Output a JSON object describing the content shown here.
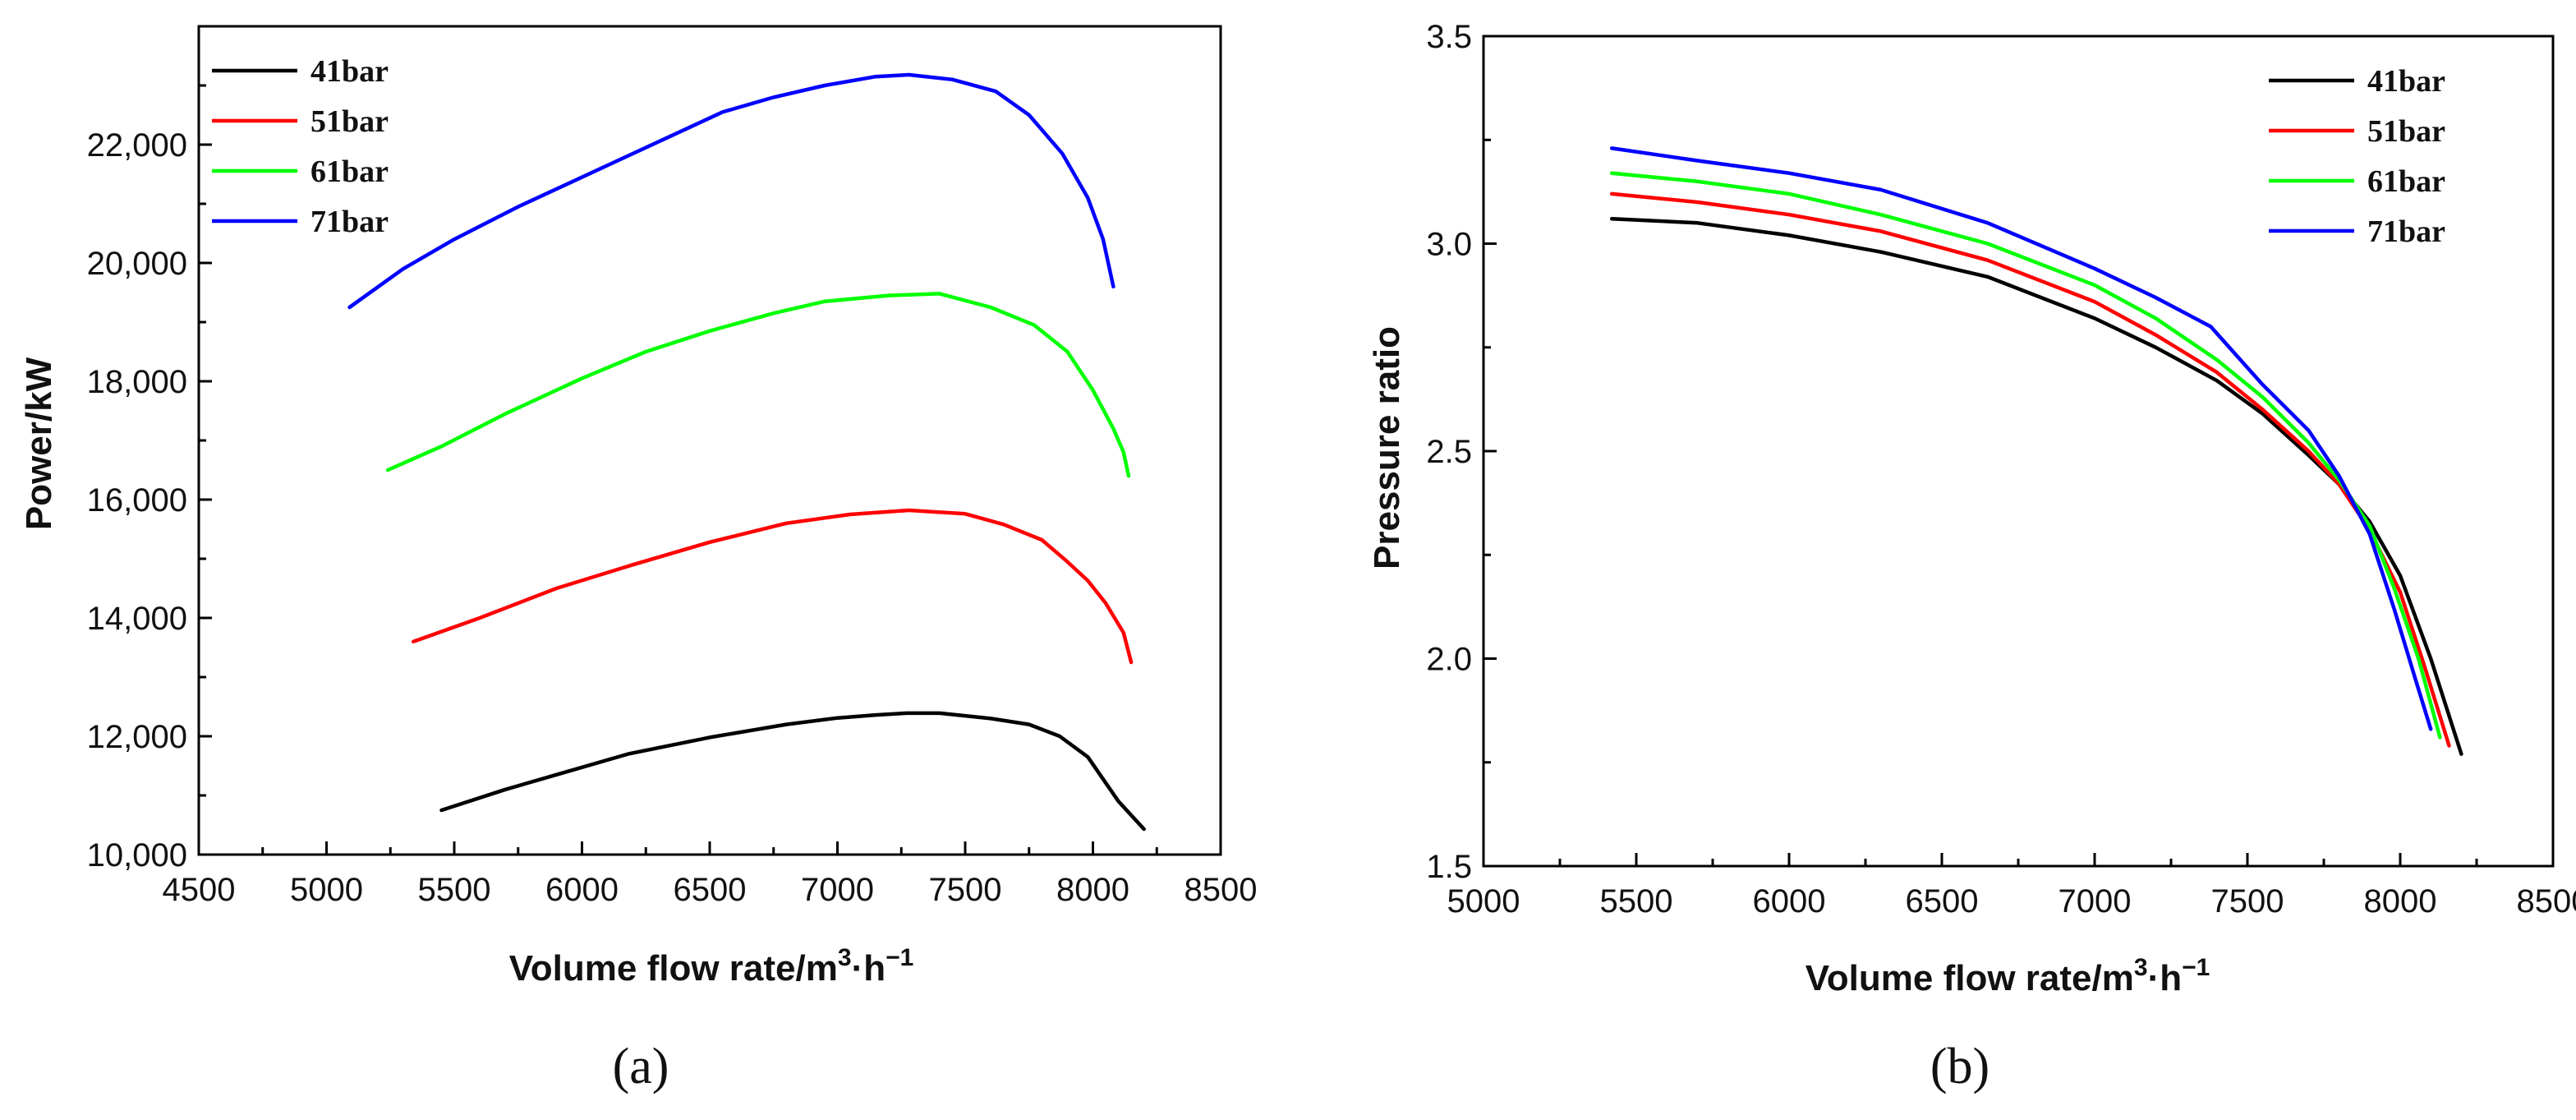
{
  "chart_data": [
    {
      "type": "line",
      "panel_label": "(a)",
      "xlabel_main": "Volume flow rate/m",
      "xlabel_sup": "3",
      "xlabel_tail": "·h",
      "xlabel_sup2": "−1",
      "ylabel": "Power/kW",
      "xlim": [
        4500,
        8500
      ],
      "ylim": [
        10000,
        24000
      ],
      "xticks": [
        4500,
        5000,
        5500,
        6000,
        6500,
        7000,
        7500,
        8000,
        8500
      ],
      "xtick_labels": [
        "4500",
        "5000",
        "5500",
        "6000",
        "6500",
        "7000",
        "7500",
        "8000",
        "8500"
      ],
      "yticks": [
        10000,
        12000,
        14000,
        16000,
        18000,
        20000,
        22000
      ],
      "ytick_labels": [
        "10,000",
        "12,000",
        "14,000",
        "16,000",
        "18,000",
        "20,000",
        "22,000"
      ],
      "legend_position": "top-left",
      "series": [
        {
          "name": "41bar",
          "color": "#000000",
          "x": [
            5450,
            5700,
            5900,
            6180,
            6500,
            6800,
            7000,
            7150,
            7270,
            7400,
            7600,
            7750,
            7870,
            7980,
            8100,
            8200
          ],
          "y": [
            10750,
            11100,
            11350,
            11700,
            11980,
            12200,
            12310,
            12360,
            12390,
            12390,
            12300,
            12200,
            12000,
            11650,
            10900,
            10430
          ]
        },
        {
          "name": "51bar",
          "color": "#ff0000",
          "x": [
            5340,
            5600,
            5900,
            6200,
            6500,
            6800,
            7050,
            7280,
            7500,
            7650,
            7800,
            7900,
            7980,
            8050,
            8120,
            8150
          ],
          "y": [
            13600,
            14000,
            14500,
            14900,
            15280,
            15600,
            15750,
            15820,
            15760,
            15580,
            15320,
            14950,
            14630,
            14250,
            13750,
            13250
          ]
        },
        {
          "name": "61bar",
          "color": "#00ff00",
          "x": [
            5240,
            5450,
            5700,
            6000,
            6250,
            6500,
            6750,
            6950,
            7200,
            7400,
            7600,
            7770,
            7900,
            8000,
            8080,
            8120,
            8140
          ],
          "y": [
            16500,
            16900,
            17450,
            18050,
            18500,
            18850,
            19150,
            19350,
            19450,
            19480,
            19250,
            18950,
            18500,
            17850,
            17200,
            16800,
            16400
          ]
        },
        {
          "name": "71bar",
          "color": "#0000ff",
          "x": [
            5090,
            5300,
            5500,
            5750,
            5950,
            6150,
            6350,
            6550,
            6750,
            6950,
            7150,
            7280,
            7450,
            7620,
            7750,
            7880,
            7980,
            8040,
            8080
          ],
          "y": [
            19250,
            19900,
            20400,
            20950,
            21350,
            21750,
            22150,
            22550,
            22800,
            23000,
            23150,
            23180,
            23100,
            22900,
            22500,
            21850,
            21100,
            20400,
            19600
          ]
        }
      ]
    },
    {
      "type": "line",
      "panel_label": "(b)",
      "xlabel_main": "Volume flow rate/m",
      "xlabel_sup": "3",
      "xlabel_tail": "·h",
      "xlabel_sup2": "−1",
      "ylabel": "Pressure ratio",
      "xlim": [
        5000,
        8500
      ],
      "ylim": [
        1.5,
        3.5
      ],
      "xticks": [
        5000,
        5500,
        6000,
        6500,
        7000,
        7500,
        8000,
        8500
      ],
      "xtick_labels": [
        "5000",
        "5500",
        "6000",
        "6500",
        "7000",
        "7500",
        "8000",
        "8500"
      ],
      "yticks": [
        1.5,
        2.0,
        2.5,
        3.0,
        3.5
      ],
      "ytick_labels": [
        "1.5",
        "2.0",
        "2.5",
        "3.0",
        "3.5"
      ],
      "legend_position": "top-right",
      "series": [
        {
          "name": "41bar",
          "color": "#000000",
          "x": [
            5420,
            5700,
            6000,
            6300,
            6650,
            7000,
            7200,
            7400,
            7550,
            7700,
            7800,
            7900,
            8000,
            8100,
            8200
          ],
          "y": [
            3.06,
            3.05,
            3.02,
            2.98,
            2.92,
            2.82,
            2.75,
            2.67,
            2.59,
            2.49,
            2.42,
            2.33,
            2.2,
            2.0,
            1.77
          ]
        },
        {
          "name": "51bar",
          "color": "#ff0000",
          "x": [
            5420,
            5700,
            6000,
            6300,
            6650,
            7000,
            7200,
            7400,
            7550,
            7700,
            7800,
            7900,
            8000,
            8080,
            8160
          ],
          "y": [
            3.12,
            3.1,
            3.07,
            3.03,
            2.96,
            2.86,
            2.78,
            2.69,
            2.6,
            2.5,
            2.42,
            2.31,
            2.16,
            1.98,
            1.79
          ]
        },
        {
          "name": "61bar",
          "color": "#00ff00",
          "x": [
            5420,
            5700,
            6000,
            6300,
            6650,
            7000,
            7200,
            7400,
            7550,
            7700,
            7800,
            7900,
            7980,
            8060,
            8130
          ],
          "y": [
            3.17,
            3.15,
            3.12,
            3.07,
            3.0,
            2.9,
            2.82,
            2.72,
            2.63,
            2.52,
            2.43,
            2.32,
            2.17,
            2.0,
            1.81
          ]
        },
        {
          "name": "71bar",
          "color": "#0000ff",
          "x": [
            5420,
            5700,
            6000,
            6300,
            6650,
            7000,
            7200,
            7380,
            7550,
            7700,
            7800,
            7900,
            7980,
            8050,
            8100
          ],
          "y": [
            3.23,
            3.2,
            3.17,
            3.13,
            3.05,
            2.94,
            2.87,
            2.8,
            2.66,
            2.55,
            2.44,
            2.3,
            2.12,
            1.95,
            1.83
          ]
        }
      ]
    }
  ]
}
